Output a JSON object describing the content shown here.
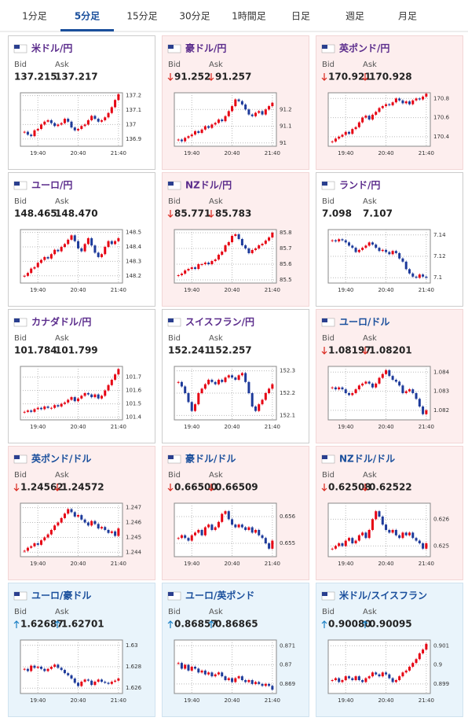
{
  "tabs": {
    "items": [
      "1分足",
      "5分足",
      "15分足",
      "30分足",
      "1時間足",
      "日足",
      "週足",
      "月足"
    ],
    "active": 1
  },
  "labels": {
    "bid": "Bid",
    "ask": "Ask"
  },
  "x_labels": [
    "19:40",
    "20:40",
    "21:40"
  ],
  "cards": [
    {
      "name": "米ドル/円",
      "bid": "137.215",
      "ask": "137.217",
      "trend": "none",
      "bg": "white",
      "color": "#5b2c8c",
      "chart": {
        "ylim": [
          136.85,
          137.22
        ],
        "yticks": [
          136.9,
          137,
          137.1,
          137.2
        ],
        "closes": [
          136.95,
          136.93,
          136.92,
          136.96,
          136.97,
          137.0,
          137.02,
          137.03,
          137.01,
          136.99,
          137.0,
          137.01,
          137.04,
          137.02,
          136.98,
          136.96,
          136.97,
          136.99,
          137.0,
          137.03,
          137.06,
          137.04,
          137.02,
          137.03,
          137.05,
          137.08,
          137.12,
          137.17,
          137.21
        ]
      }
    },
    {
      "name": "豪ドル/円",
      "bid": "91.252",
      "ask": "91.257",
      "trend": "down",
      "bg": "pink",
      "color": "#5b2c8c",
      "chart": {
        "ylim": [
          90.98,
          91.3
        ],
        "yticks": [
          91,
          91.1,
          91.2
        ],
        "closes": [
          91.02,
          91.01,
          91.03,
          91.04,
          91.05,
          91.07,
          91.06,
          91.08,
          91.1,
          91.09,
          91.11,
          91.12,
          91.14,
          91.13,
          91.16,
          91.19,
          91.22,
          91.26,
          91.25,
          91.23,
          91.2,
          91.17,
          91.16,
          91.18,
          91.19,
          91.17,
          91.2,
          91.22,
          91.24
        ]
      }
    },
    {
      "name": "英ポンド/円",
      "bid": "170.921",
      "ask": "170.928",
      "trend": "down",
      "bg": "pink",
      "color": "#5b2c8c",
      "chart": {
        "ylim": [
          170.3,
          170.86
        ],
        "yticks": [
          170.4,
          170.6,
          170.8
        ],
        "closes": [
          170.35,
          170.38,
          170.4,
          170.42,
          170.45,
          170.43,
          170.48,
          170.5,
          170.55,
          170.6,
          170.62,
          170.58,
          170.63,
          170.66,
          170.7,
          170.72,
          170.74,
          170.73,
          170.76,
          170.8,
          170.78,
          170.75,
          170.77,
          170.74,
          170.78,
          170.8,
          170.79,
          170.82,
          170.85
        ]
      }
    },
    {
      "name": "ユーロ/円",
      "bid": "148.465",
      "ask": "148.470",
      "trend": "none",
      "bg": "white",
      "color": "#5b2c8c",
      "chart": {
        "ylim": [
          148.15,
          148.52
        ],
        "yticks": [
          148.2,
          148.3,
          148.4,
          148.5
        ],
        "closes": [
          148.2,
          148.22,
          148.25,
          148.26,
          148.29,
          148.31,
          148.33,
          148.32,
          148.35,
          148.38,
          148.37,
          148.4,
          148.42,
          148.45,
          148.48,
          148.44,
          148.39,
          148.37,
          148.42,
          148.46,
          148.41,
          148.36,
          148.33,
          148.35,
          148.4,
          148.44,
          148.42,
          148.44,
          148.46
        ]
      }
    },
    {
      "name": "NZドル/円",
      "bid": "85.771",
      "ask": "85.783",
      "trend": "down",
      "bg": "pink",
      "color": "#5b2c8c",
      "chart": {
        "ylim": [
          85.48,
          85.82
        ],
        "yticks": [
          85.5,
          85.6,
          85.7,
          85.8
        ],
        "closes": [
          85.53,
          85.54,
          85.56,
          85.57,
          85.58,
          85.57,
          85.6,
          85.6,
          85.61,
          85.6,
          85.62,
          85.63,
          85.66,
          85.68,
          85.72,
          85.74,
          85.78,
          85.79,
          85.76,
          85.72,
          85.7,
          85.67,
          85.69,
          85.7,
          85.72,
          85.73,
          85.75,
          85.77,
          85.8
        ]
      }
    },
    {
      "name": "ランド/円",
      "bid": "7.098",
      "ask": "7.107",
      "trend": "none",
      "bg": "white",
      "color": "#5b2c8c",
      "chart": {
        "ylim": [
          7.095,
          7.145
        ],
        "yticks": [
          7.1,
          7.12,
          7.14
        ],
        "closes": [
          7.135,
          7.134,
          7.136,
          7.135,
          7.133,
          7.13,
          7.128,
          7.124,
          7.126,
          7.128,
          7.13,
          7.133,
          7.131,
          7.128,
          7.125,
          7.126,
          7.124,
          7.122,
          7.125,
          7.123,
          7.118,
          7.115,
          7.108,
          7.104,
          7.101,
          7.1,
          7.103,
          7.101,
          7.1
        ]
      }
    },
    {
      "name": "カナダドル/円",
      "bid": "101.784",
      "ask": "101.799",
      "trend": "none",
      "bg": "white",
      "color": "#5b2c8c",
      "chart": {
        "ylim": [
          101.38,
          101.78
        ],
        "yticks": [
          101.4,
          101.5,
          101.6,
          101.7
        ],
        "closes": [
          101.44,
          101.45,
          101.44,
          101.46,
          101.47,
          101.46,
          101.48,
          101.47,
          101.47,
          101.49,
          101.48,
          101.5,
          101.51,
          101.53,
          101.55,
          101.52,
          101.54,
          101.56,
          101.58,
          101.57,
          101.55,
          101.57,
          101.54,
          101.56,
          101.6,
          101.64,
          101.68,
          101.72,
          101.76
        ]
      }
    },
    {
      "name": "スイスフラン/円",
      "bid": "152.241",
      "ask": "152.257",
      "trend": "none",
      "bg": "white",
      "color": "#5b2c8c",
      "chart": {
        "ylim": [
          152.08,
          152.32
        ],
        "yticks": [
          152.1,
          152.2,
          152.3
        ],
        "closes": [
          152.25,
          152.23,
          152.2,
          152.16,
          152.12,
          152.15,
          152.2,
          152.22,
          152.24,
          152.26,
          152.25,
          152.24,
          152.26,
          152.25,
          152.27,
          152.28,
          152.27,
          152.26,
          152.28,
          152.29,
          152.25,
          152.2,
          152.14,
          152.12,
          152.15,
          152.17,
          152.2,
          152.22,
          152.24
        ]
      }
    },
    {
      "name": "ユーロ/ドル",
      "bid": "1.08197",
      "ask": "1.08201",
      "trend": "down",
      "bg": "pink",
      "color": "#1a4f9c",
      "chart": {
        "ylim": [
          1.0815,
          1.0843
        ],
        "yticks": [
          1.082,
          1.083,
          1.084
        ],
        "closes": [
          1.0832,
          1.0831,
          1.0832,
          1.0831,
          1.0829,
          1.0828,
          1.0829,
          1.0831,
          1.0833,
          1.0834,
          1.0835,
          1.0834,
          1.0832,
          1.0834,
          1.0837,
          1.0839,
          1.0841,
          1.0838,
          1.0836,
          1.0835,
          1.0833,
          1.0829,
          1.083,
          1.0831,
          1.0829,
          1.0826,
          1.0822,
          1.0818,
          1.082
        ]
      }
    },
    {
      "name": "英ポンド/ドル",
      "bid": "1.24562",
      "ask": "1.24572",
      "trend": "down",
      "bg": "pink",
      "color": "#1a4f9c",
      "chart": {
        "ylim": [
          1.2437,
          1.2473
        ],
        "yticks": [
          1.244,
          1.245,
          1.246,
          1.247
        ],
        "closes": [
          1.2441,
          1.2443,
          1.2444,
          1.2446,
          1.2445,
          1.2448,
          1.245,
          1.2452,
          1.2455,
          1.2458,
          1.246,
          1.2463,
          1.2466,
          1.2469,
          1.2467,
          1.2464,
          1.2465,
          1.2462,
          1.246,
          1.2458,
          1.2461,
          1.2459,
          1.2456,
          1.2457,
          1.2455,
          1.2453,
          1.2454,
          1.2451,
          1.2456
        ]
      }
    },
    {
      "name": "豪ドル/ドル",
      "bid": "0.66500",
      "ask": "0.66509",
      "trend": "down",
      "bg": "pink",
      "color": "#1a4f9c",
      "chart": {
        "ylim": [
          0.6545,
          0.6565
        ],
        "yticks": [
          0.655,
          0.656
        ],
        "closes": [
          0.6552,
          0.6553,
          0.6552,
          0.6551,
          0.6553,
          0.6554,
          0.6555,
          0.6553,
          0.6556,
          0.6557,
          0.6555,
          0.6556,
          0.6558,
          0.6561,
          0.6562,
          0.6559,
          0.6557,
          0.6556,
          0.6557,
          0.6556,
          0.6555,
          0.6556,
          0.6554,
          0.6555,
          0.6553,
          0.6552,
          0.655,
          0.6548,
          0.6551
        ]
      }
    },
    {
      "name": "NZドル/ドル",
      "bid": "0.62508",
      "ask": "0.62522",
      "trend": "down",
      "bg": "pink",
      "color": "#1a4f9c",
      "chart": {
        "ylim": [
          0.6246,
          0.6266
        ],
        "yticks": [
          0.625,
          0.626
        ],
        "closes": [
          0.6249,
          0.625,
          0.6251,
          0.625,
          0.6252,
          0.6253,
          0.6251,
          0.6252,
          0.6254,
          0.6255,
          0.6253,
          0.6256,
          0.626,
          0.6263,
          0.6261,
          0.6258,
          0.6256,
          0.6255,
          0.6256,
          0.6254,
          0.6253,
          0.6255,
          0.6254,
          0.6255,
          0.6253,
          0.6252,
          0.6251,
          0.6249,
          0.6251
        ]
      }
    },
    {
      "name": "ユーロ/豪ドル",
      "bid": "1.62687",
      "ask": "1.62701",
      "trend": "up",
      "bg": "blue",
      "color": "#1a4f9c",
      "chart": {
        "ylim": [
          1.6255,
          1.6305
        ],
        "yticks": [
          1.626,
          1.628,
          1.63
        ],
        "closes": [
          1.6278,
          1.6276,
          1.6281,
          1.6279,
          1.628,
          1.6278,
          1.6276,
          1.6278,
          1.628,
          1.6282,
          1.6279,
          1.6277,
          1.6274,
          1.6272,
          1.6269,
          1.6265,
          1.6262,
          1.6266,
          1.6268,
          1.6267,
          1.6263,
          1.6266,
          1.6268,
          1.6266,
          1.6265,
          1.6264,
          1.6266,
          1.6267,
          1.6269
        ]
      }
    },
    {
      "name": "ユーロ/英ポンド",
      "bid": "0.86857",
      "ask": "0.86865",
      "trend": "up",
      "bg": "blue",
      "color": "#1a4f9c",
      "chart": {
        "ylim": [
          0.8685,
          0.8713
        ],
        "yticks": [
          0.869,
          0.87,
          0.871
        ],
        "closes": [
          0.8701,
          0.8698,
          0.87,
          0.8697,
          0.8699,
          0.8698,
          0.8696,
          0.8697,
          0.8695,
          0.8696,
          0.8694,
          0.8695,
          0.8696,
          0.8694,
          0.8692,
          0.8693,
          0.8691,
          0.8693,
          0.8694,
          0.8692,
          0.8691,
          0.8692,
          0.869,
          0.8691,
          0.869,
          0.8689,
          0.869,
          0.8689,
          0.8687
        ]
      }
    },
    {
      "name": "米ドル/スイスフラン",
      "bid": "0.90080",
      "ask": "0.90095",
      "trend": "up",
      "bg": "blue",
      "color": "#1a4f9c",
      "chart": {
        "ylim": [
          0.8985,
          0.9013
        ],
        "yticks": [
          0.899,
          0.9,
          0.901
        ],
        "closes": [
          0.8992,
          0.8993,
          0.8991,
          0.8992,
          0.8994,
          0.8993,
          0.8992,
          0.8994,
          0.8992,
          0.8991,
          0.8993,
          0.8994,
          0.8996,
          0.8995,
          0.8994,
          0.8996,
          0.8995,
          0.8993,
          0.8991,
          0.8992,
          0.8994,
          0.8996,
          0.8997,
          0.8999,
          0.9001,
          0.9003,
          0.9006,
          0.9008,
          0.9011
        ]
      }
    }
  ]
}
